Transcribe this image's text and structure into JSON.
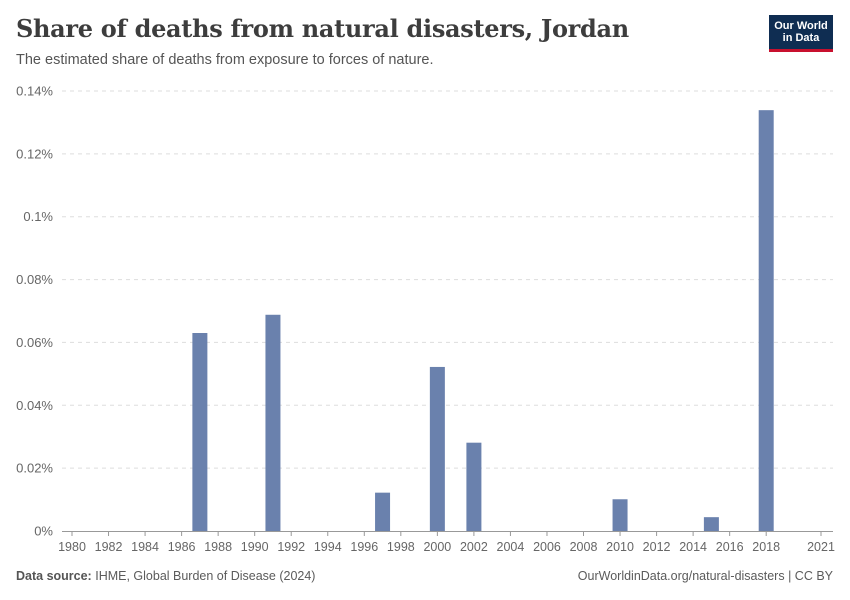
{
  "header": {
    "title": "Share of deaths from natural disasters, Jordan",
    "subtitle": "The estimated share of deaths from exposure to forces of nature."
  },
  "logo": {
    "line1": "Our World",
    "line2": "in Data"
  },
  "footer": {
    "source_label": "Data source:",
    "source_text": "IHME, Global Burden of Disease (2024)",
    "credit": "OurWorldinData.org/natural-disasters | CC BY"
  },
  "colors": {
    "bar": "#6a81ad",
    "grid": "#dddddd",
    "axis": "#999999",
    "text": "#666666"
  },
  "chart_data": {
    "type": "bar",
    "title": "Share of deaths from natural disasters, Jordan",
    "xlabel": "",
    "ylabel": "",
    "unit": "%",
    "ylim": [
      0,
      0.14
    ],
    "yticks": [
      0,
      0.02,
      0.04,
      0.06,
      0.08,
      0.1,
      0.12,
      0.14
    ],
    "ytick_labels": [
      "0%",
      "0.02%",
      "0.04%",
      "0.06%",
      "0.08%",
      "0.1%",
      "0.12%",
      "0.14%"
    ],
    "xticks": [
      "1980",
      "1982",
      "1984",
      "1986",
      "1988",
      "1990",
      "1992",
      "1994",
      "1996",
      "1998",
      "2000",
      "2002",
      "2004",
      "2006",
      "2008",
      "2010",
      "2012",
      "2014",
      "2016",
      "2018",
      "2021"
    ],
    "categories": [
      1980,
      1981,
      1982,
      1983,
      1984,
      1985,
      1986,
      1987,
      1988,
      1989,
      1990,
      1991,
      1992,
      1993,
      1994,
      1995,
      1996,
      1997,
      1998,
      1999,
      2000,
      2001,
      2002,
      2003,
      2004,
      2005,
      2006,
      2007,
      2008,
      2009,
      2010,
      2011,
      2012,
      2013,
      2014,
      2015,
      2016,
      2017,
      2018,
      2019,
      2020,
      2021
    ],
    "values": [
      0,
      0,
      0,
      0,
      0,
      0,
      0,
      0.063,
      0,
      0,
      0,
      0.0688,
      0,
      0,
      0,
      0,
      0,
      0.0122,
      0,
      0,
      0.0522,
      0,
      0.0281,
      0,
      0,
      0,
      0,
      0,
      0,
      0,
      0.0101,
      0,
      0,
      0,
      0,
      0.0044,
      0,
      0,
      0.1339,
      0,
      0,
      0
    ],
    "grid": true
  }
}
